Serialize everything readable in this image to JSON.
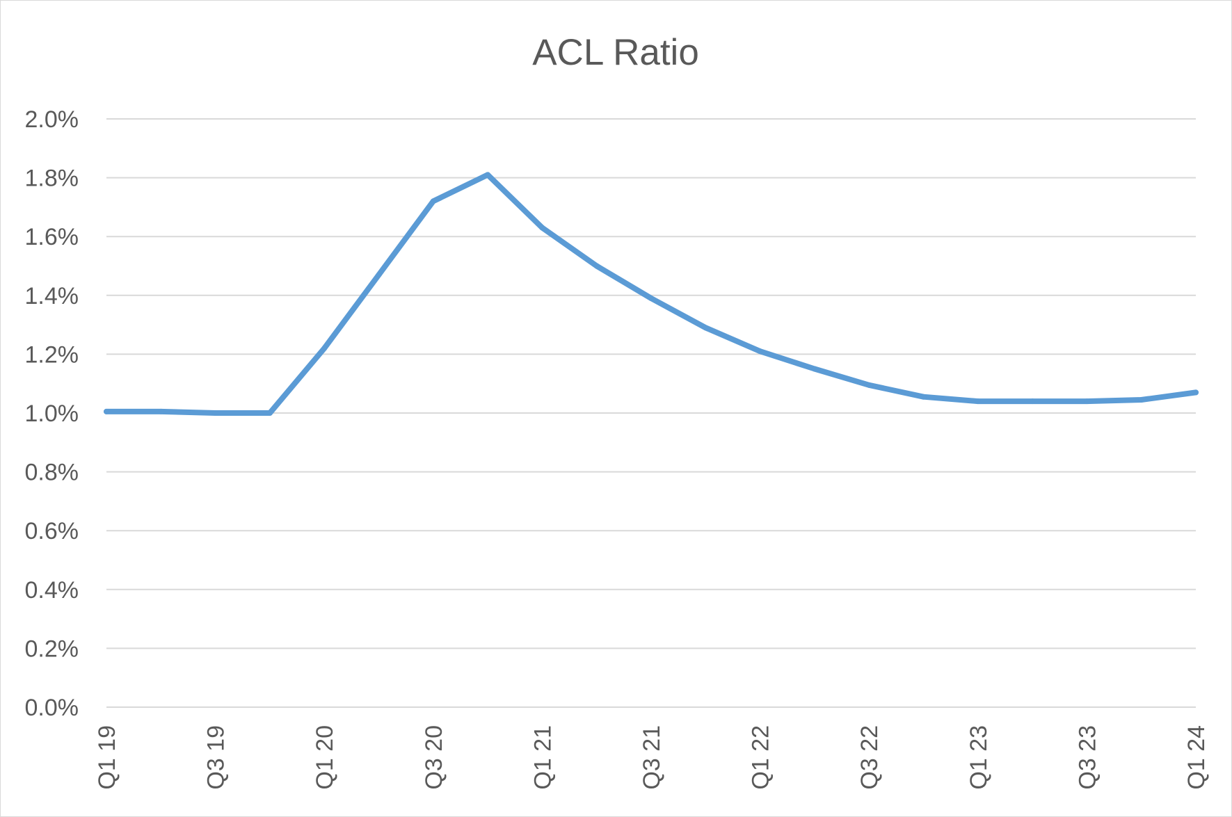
{
  "chart_data": {
    "type": "line",
    "title": "ACL Ratio",
    "xlabel": "",
    "ylabel": "",
    "ylim": [
      0,
      2.0
    ],
    "y_tick_values": [
      0,
      0.2,
      0.4,
      0.6,
      0.8,
      1.0,
      1.2,
      1.4,
      1.6,
      1.8,
      2.0
    ],
    "y_tick_labels": [
      "0.0%",
      "0.2%",
      "0.4%",
      "0.6%",
      "0.8%",
      "1.0%",
      "1.2%",
      "1.4%",
      "1.6%",
      "1.8%",
      "2.0%"
    ],
    "categories": [
      "Q1 19",
      "Q2 19",
      "Q3 19",
      "Q4 19",
      "Q1 20",
      "Q2 20",
      "Q3 20",
      "Q4 20",
      "Q1 21",
      "Q2 21",
      "Q3 21",
      "Q4 21",
      "Q1 22",
      "Q2 22",
      "Q3 22",
      "Q4 22",
      "Q1 23",
      "Q2 23",
      "Q3 23",
      "Q4 23",
      "Q1 24"
    ],
    "x_tick_labels": [
      "Q1 19",
      "",
      "Q3 19",
      "",
      "Q1 20",
      "",
      "Q3 20",
      "",
      "Q1 21",
      "",
      "Q3 21",
      "",
      "Q1 22",
      "",
      "Q3 22",
      "",
      "Q1 23",
      "",
      "Q3 23",
      "",
      "Q1 24"
    ],
    "grid": true,
    "legend": "none",
    "series": [
      {
        "name": "ACL Ratio",
        "color": "#5b9bd5",
        "values": [
          1.005,
          1.005,
          1.0,
          1.0,
          1.22,
          1.47,
          1.72,
          1.81,
          1.63,
          1.5,
          1.39,
          1.29,
          1.21,
          1.15,
          1.095,
          1.055,
          1.04,
          1.04,
          1.04,
          1.045,
          1.07
        ]
      }
    ]
  }
}
